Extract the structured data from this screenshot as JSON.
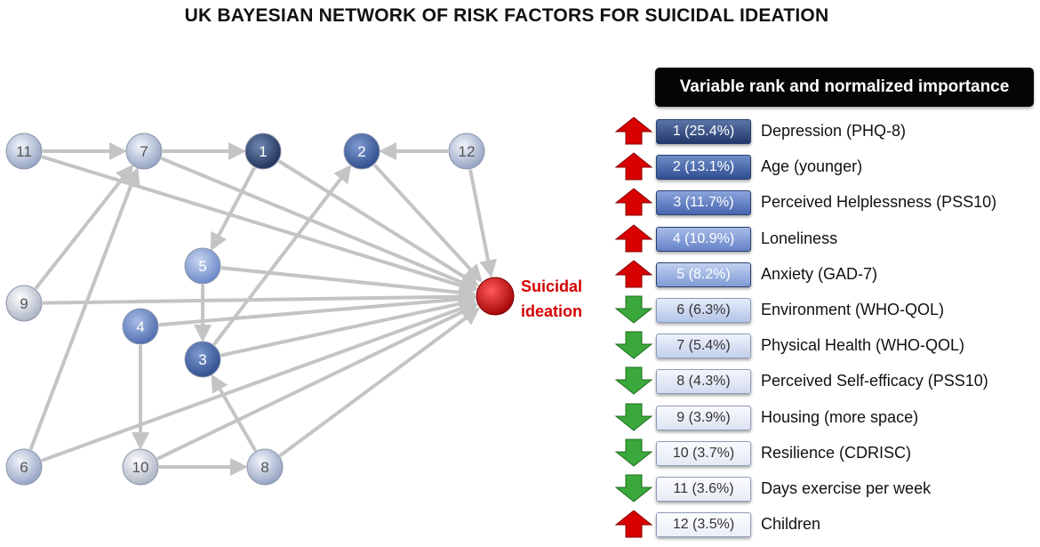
{
  "title": "UK BAYESIAN NETWORK OF RISK FACTORS FOR SUICIDAL IDEATION",
  "target": {
    "label_line1": "Suicidal",
    "label_line2": "ideation",
    "color": "#d40000"
  },
  "nodes": [
    {
      "id": "11",
      "label": "11",
      "shade": "light"
    },
    {
      "id": "7",
      "label": "7",
      "shade": "light"
    },
    {
      "id": "1",
      "label": "1",
      "shade": "darkest"
    },
    {
      "id": "2",
      "label": "2",
      "shade": "dark"
    },
    {
      "id": "12",
      "label": "12",
      "shade": "light"
    },
    {
      "id": "5",
      "label": "5",
      "shade": "medium"
    },
    {
      "id": "9",
      "label": "9",
      "shade": "lightest"
    },
    {
      "id": "4",
      "label": "4",
      "shade": "mediumdark"
    },
    {
      "id": "3",
      "label": "3",
      "shade": "dark"
    },
    {
      "id": "6",
      "label": "6",
      "shade": "light"
    },
    {
      "id": "10",
      "label": "10",
      "shade": "lightest"
    },
    {
      "id": "8",
      "label": "8",
      "shade": "light"
    }
  ],
  "edges": [
    [
      "11",
      "7"
    ],
    [
      "7",
      "1"
    ],
    [
      "12",
      "2"
    ],
    [
      "1",
      "5"
    ],
    [
      "5",
      "3"
    ],
    [
      "3",
      "2"
    ],
    [
      "9",
      "7"
    ],
    [
      "6",
      "7"
    ],
    [
      "4",
      "10"
    ],
    [
      "10",
      "8"
    ],
    [
      "8",
      "3"
    ],
    [
      "11",
      "SI"
    ],
    [
      "7",
      "SI"
    ],
    [
      "1",
      "SI"
    ],
    [
      "2",
      "SI"
    ],
    [
      "12",
      "SI"
    ],
    [
      "5",
      "SI"
    ],
    [
      "9",
      "SI"
    ],
    [
      "4",
      "SI"
    ],
    [
      "3",
      "SI"
    ],
    [
      "6",
      "SI"
    ],
    [
      "10",
      "SI"
    ],
    [
      "8",
      "SI"
    ]
  ],
  "ranking": {
    "header": "Variable rank and normalized importance",
    "items": [
      {
        "box": "1 (25.4%)",
        "label": "Depression (PHQ-8)",
        "direction": "up"
      },
      {
        "box": "2 (13.1%)",
        "label": "Age (younger)",
        "direction": "up"
      },
      {
        "box": "3 (11.7%)",
        "label": "Perceived Helplessness (PSS10)",
        "direction": "up"
      },
      {
        "box": "4 (10.9%)",
        "label": "Loneliness",
        "direction": "up"
      },
      {
        "box": "5 (8.2%)",
        "label": "Anxiety (GAD-7)",
        "direction": "up"
      },
      {
        "box": "6 (6.3%)",
        "label": "Environment (WHO-QOL)",
        "direction": "down"
      },
      {
        "box": "7 (5.4%)",
        "label": "Physical Health (WHO-QOL)",
        "direction": "down"
      },
      {
        "box": "8 (4.3%)",
        "label": "Perceived Self-efficacy (PSS10)",
        "direction": "down"
      },
      {
        "box": "9 (3.9%)",
        "label": "Housing (more space)",
        "direction": "down"
      },
      {
        "box": "10 (3.7%)",
        "label": "Resilience (CDRISC)",
        "direction": "down"
      },
      {
        "box": "11 (3.6%)",
        "label": "Days exercise per week",
        "direction": "down"
      },
      {
        "box": "12 (3.5%)",
        "label": "Children",
        "direction": "up"
      }
    ]
  },
  "colors": {
    "edge": "#c4c4c4",
    "up_arrow": "#d90000",
    "down_arrow": "#3aa83a",
    "header_bg": "#050505"
  }
}
